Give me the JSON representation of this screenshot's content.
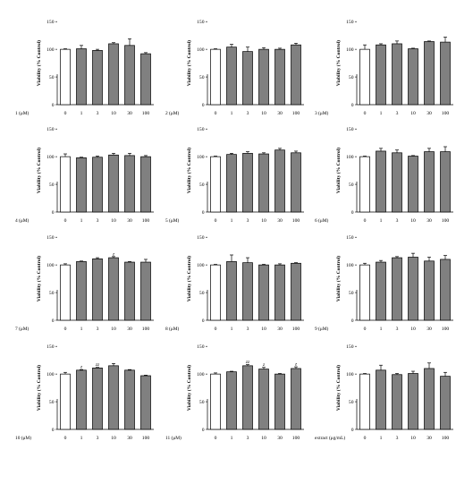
{
  "figure": {
    "layout": "4x3 grid of bar charts",
    "colors": {
      "control_bar": "#ffffff",
      "treated_bar": "#808080",
      "stroke": "#000000"
    }
  },
  "chart_data": [
    {
      "type": "bar",
      "compound_label": "1 (μM)",
      "ylabel": "Viability (% Control)",
      "ylim": [
        0,
        150
      ],
      "yticks": [
        "0",
        "50",
        "100",
        "150"
      ],
      "categories": [
        "0",
        "1",
        "3",
        "10",
        "30",
        "100"
      ],
      "values": [
        100,
        101,
        98,
        110,
        107,
        92
      ],
      "errors": [
        1,
        6,
        2,
        2,
        12,
        2
      ],
      "significance": [
        "",
        "",
        "",
        "",
        "",
        ""
      ]
    },
    {
      "type": "bar",
      "compound_label": "2 (μM)",
      "ylabel": "Viability (% Control)",
      "ylim": [
        0,
        150
      ],
      "yticks": [
        "0",
        "50",
        "100",
        "150"
      ],
      "categories": [
        "0",
        "1",
        "3",
        "10",
        "30",
        "100"
      ],
      "values": [
        100,
        104,
        96,
        100,
        100,
        108
      ],
      "errors": [
        1,
        5,
        8,
        3,
        2,
        3
      ],
      "significance": [
        "",
        "",
        "",
        "",
        "",
        ""
      ]
    },
    {
      "type": "bar",
      "compound_label": "3 (μM)",
      "ylabel": "Viability (% Control)",
      "ylim": [
        0,
        150
      ],
      "yticks": [
        "0",
        "50",
        "100",
        "150"
      ],
      "categories": [
        "0",
        "1",
        "3",
        "10",
        "30",
        "100"
      ],
      "values": [
        100,
        108,
        110,
        101,
        114,
        113
      ],
      "errors": [
        8,
        2,
        5,
        1,
        1,
        9
      ],
      "significance": [
        "",
        "",
        "",
        "",
        "",
        ""
      ]
    },
    {
      "type": "bar",
      "compound_label": "4 (μM)",
      "ylabel": "Viability (% Control)",
      "ylim": [
        0,
        150
      ],
      "yticks": [
        "0",
        "50",
        "100",
        "150"
      ],
      "categories": [
        "0",
        "1",
        "3",
        "10",
        "30",
        "100"
      ],
      "values": [
        100,
        98,
        99,
        103,
        102,
        100
      ],
      "errors": [
        5,
        1,
        2,
        3,
        4,
        2
      ],
      "significance": [
        "",
        "",
        "",
        "",
        "",
        ""
      ]
    },
    {
      "type": "bar",
      "compound_label": "5 (μM)",
      "ylabel": "Viability (% Control)",
      "ylim": [
        0,
        150
      ],
      "yticks": [
        "0",
        "50",
        "100",
        "150"
      ],
      "categories": [
        "0",
        "1",
        "3",
        "10",
        "30",
        "100"
      ],
      "values": [
        100,
        104,
        106,
        105,
        112,
        107
      ],
      "errors": [
        1,
        2,
        3,
        2,
        3,
        3
      ],
      "significance": [
        "",
        "",
        "",
        "",
        "",
        ""
      ]
    },
    {
      "type": "bar",
      "compound_label": "6 (μM)",
      "ylabel": "Viability (% Control)",
      "ylim": [
        0,
        150
      ],
      "yticks": [
        "0",
        "50",
        "100",
        "150"
      ],
      "categories": [
        "0",
        "1",
        "3",
        "10",
        "30",
        "100"
      ],
      "values": [
        100,
        110,
        107,
        101,
        109,
        109
      ],
      "errors": [
        1,
        5,
        5,
        1,
        6,
        9
      ],
      "significance": [
        "",
        "",
        "",
        "",
        "",
        ""
      ]
    },
    {
      "type": "bar",
      "compound_label": "7 (μM)",
      "ylabel": "Viability (% Control)",
      "ylim": [
        0,
        150
      ],
      "yticks": [
        "0",
        "50",
        "100",
        "150"
      ],
      "categories": [
        "0",
        "1",
        "3",
        "10",
        "30",
        "100"
      ],
      "values": [
        100,
        106,
        111,
        113,
        105,
        105
      ],
      "errors": [
        2,
        1,
        2,
        2,
        1,
        5
      ],
      "significance": [
        "",
        "",
        "",
        "z",
        "",
        ""
      ]
    },
    {
      "type": "bar",
      "compound_label": "8 (μM)",
      "ylabel": "Viability (% Control)",
      "ylim": [
        0,
        150
      ],
      "yticks": [
        "0",
        "50",
        "100",
        "150"
      ],
      "categories": [
        "0",
        "1",
        "3",
        "10",
        "30",
        "100"
      ],
      "values": [
        100,
        106,
        104,
        100,
        100,
        103
      ],
      "errors": [
        1,
        12,
        9,
        1,
        2,
        1
      ],
      "significance": [
        "",
        "",
        "",
        "",
        "",
        ""
      ]
    },
    {
      "type": "bar",
      "compound_label": "9 (μM)",
      "ylabel": "Viability (% Control)",
      "ylim": [
        0,
        150
      ],
      "yticks": [
        "0",
        "50",
        "100",
        "150"
      ],
      "categories": [
        "0",
        "1",
        "3",
        "10",
        "30",
        "100"
      ],
      "values": [
        100,
        105,
        113,
        114,
        107,
        110
      ],
      "errors": [
        3,
        3,
        2,
        7,
        7,
        7
      ],
      "significance": [
        "",
        "",
        "",
        "",
        "",
        ""
      ]
    },
    {
      "type": "bar",
      "compound_label": "10 (μM)",
      "ylabel": "Viability (% Control)",
      "ylim": [
        0,
        150
      ],
      "yticks": [
        "0",
        "50",
        "100",
        "150"
      ],
      "categories": [
        "0",
        "1",
        "3",
        "10",
        "30",
        "100"
      ],
      "values": [
        100,
        107,
        111,
        115,
        107,
        97
      ],
      "errors": [
        3,
        1,
        1,
        4,
        1,
        1
      ],
      "significance": [
        "",
        "z",
        "zz",
        "",
        "",
        ""
      ]
    },
    {
      "type": "bar",
      "compound_label": "11 (μM)",
      "ylabel": "Viability (% Control)",
      "ylim": [
        0,
        150
      ],
      "yticks": [
        "0",
        "50",
        "100",
        "150"
      ],
      "categories": [
        "0",
        "1",
        "3",
        "10",
        "30",
        "100"
      ],
      "values": [
        100,
        104,
        115,
        109,
        100,
        110
      ],
      "errors": [
        2,
        1,
        2,
        3,
        1,
        3
      ],
      "significance": [
        "",
        "",
        "zz",
        "z",
        "",
        "z"
      ]
    },
    {
      "type": "bar",
      "compound_label": "extract (μg/mL)",
      "ylabel": "Viability (% Control)",
      "ylim": [
        0,
        150
      ],
      "yticks": [
        "0",
        "50",
        "100",
        "150"
      ],
      "categories": [
        "0",
        "1",
        "3",
        "10",
        "30",
        "100"
      ],
      "values": [
        100,
        107,
        99,
        101,
        110,
        96
      ],
      "errors": [
        1,
        9,
        2,
        4,
        10,
        7
      ],
      "significance": [
        "",
        "",
        "",
        "",
        "",
        ""
      ]
    }
  ]
}
